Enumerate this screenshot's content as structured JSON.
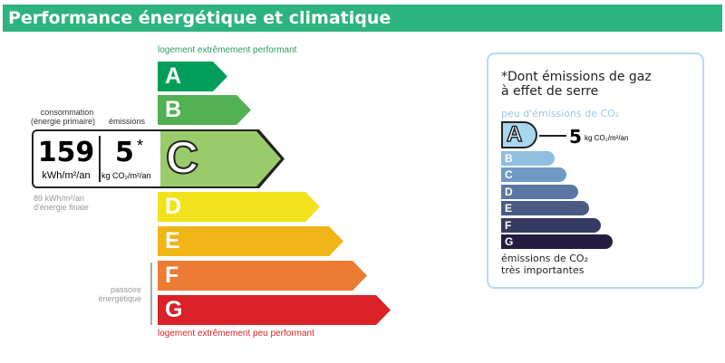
{
  "header": {
    "title": "Performance énergétique et climatique"
  },
  "dpe": {
    "top_label": "logement extrêmement performant",
    "bottom_label": "logement extrêmement peu performant",
    "classes": [
      {
        "letter": "A",
        "color": "#009e5a"
      },
      {
        "letter": "B",
        "color": "#52b153"
      },
      {
        "letter": "C",
        "color": "#9acb6b"
      },
      {
        "letter": "D",
        "color": "#f1e21b"
      },
      {
        "letter": "E",
        "color": "#f0b417"
      },
      {
        "letter": "F",
        "color": "#ec7b33"
      },
      {
        "letter": "G",
        "color": "#d82227"
      }
    ],
    "current_class": "C",
    "consumption_label": "consommation",
    "consumption_sub": "(énergie primaire)",
    "emissions_label": "émissions",
    "consumption_value": "159",
    "consumption_unit": "kWh/m²/an",
    "emissions_value": "5",
    "emissions_star": "*",
    "emissions_unit": "kg CO₂/m²/an",
    "final_energy_line1": "89 kWh/m²/an",
    "final_energy_line2": "d'énergie finale",
    "passoire_line1": "passoire",
    "passoire_line2": "énergétique"
  },
  "ges": {
    "note_line1": "*Dont émissions de gaz",
    "note_line2": "à effet de serre",
    "top_label": "peu d'émissions de CO₂",
    "current_class": "A",
    "value": "5",
    "unit": "kg CO₂/m²/an",
    "classes": [
      {
        "letter": "B",
        "color": "#8fbfe0"
      },
      {
        "letter": "C",
        "color": "#6f9ac4"
      },
      {
        "letter": "D",
        "color": "#5a77a3"
      },
      {
        "letter": "E",
        "color": "#4a5a85"
      },
      {
        "letter": "F",
        "color": "#363a63"
      },
      {
        "letter": "G",
        "color": "#241c3f"
      }
    ],
    "bottom_line1": "émissions de CO₂",
    "bottom_line2": "très importantes"
  }
}
